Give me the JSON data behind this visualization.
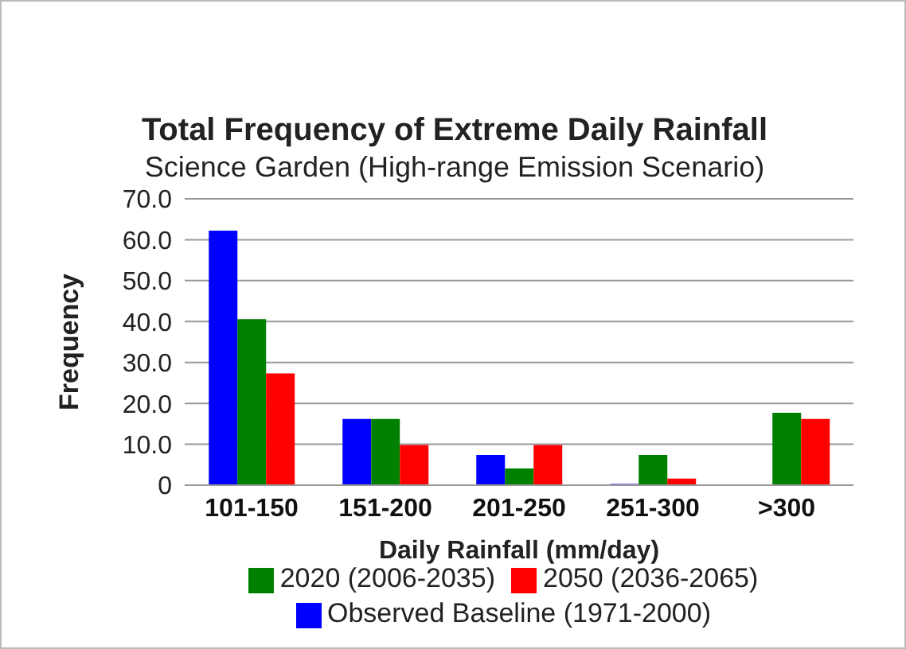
{
  "chart_data": {
    "type": "bar",
    "title": "Total Frequency of Extreme Daily Rainfall",
    "subtitle": "Science Garden (High-range Emission Scenario)",
    "xlabel": "Daily Rainfall (mm/day)",
    "ylabel": "Frequency",
    "categories": [
      "101-150",
      "151-200",
      "201-250",
      "251-300",
      ">300"
    ],
    "series": [
      {
        "name": "Observed Baseline (1971-2000)",
        "color": "#0000ff",
        "values": [
          62.2,
          16.2,
          7.4,
          0.3,
          0
        ]
      },
      {
        "name": "2020 (2006-2035)",
        "color": "#008000",
        "values": [
          40.6,
          16.2,
          4.1,
          7.4,
          17.7
        ]
      },
      {
        "name": "2050 (2036-2065)",
        "color": "#ff0000",
        "values": [
          27.3,
          9.8,
          9.8,
          1.6,
          16.2
        ]
      }
    ],
    "ylim": [
      0,
      70
    ],
    "yticks": [
      {
        "value": 0,
        "label": "0"
      },
      {
        "value": 10,
        "label": "10.0"
      },
      {
        "value": 20,
        "label": "20.0"
      },
      {
        "value": 30,
        "label": "30.0"
      },
      {
        "value": 40,
        "label": "40.0"
      },
      {
        "value": 50,
        "label": "50.0"
      },
      {
        "value": 60,
        "label": "60.0"
      },
      {
        "value": 70,
        "label": "70.0"
      }
    ],
    "grid": "y",
    "legend": "bottom"
  }
}
